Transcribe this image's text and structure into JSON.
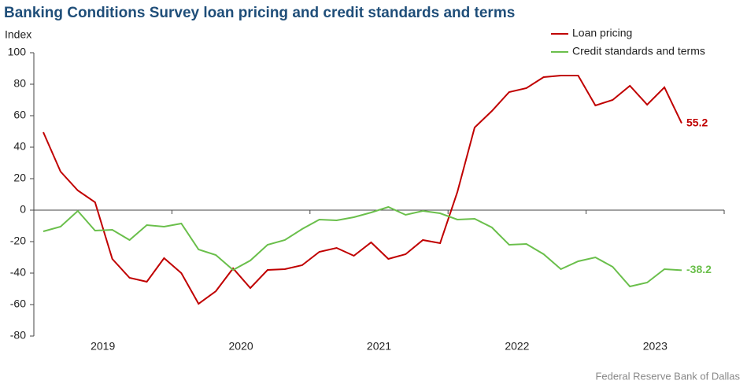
{
  "chart_data": {
    "type": "line",
    "title": "Banking Conditions Survey loan pricing and credit standards and terms",
    "y_label": "Index",
    "source": "Federal Reserve Bank of Dallas",
    "year_labels": [
      "2019",
      "2020",
      "2021",
      "2022",
      "2023"
    ],
    "ylim": [
      -80,
      100
    ],
    "yticks": [
      -80,
      -60,
      -40,
      -20,
      0,
      20,
      40,
      60,
      80,
      100
    ],
    "legend": "top-right",
    "series": [
      {
        "name": "Loan pricing",
        "color": "#c00000",
        "values": [
          49.5,
          24.5,
          12.5,
          5,
          -31,
          -43,
          -45.5,
          -30.5,
          -40,
          -59.5,
          -51.5,
          -37,
          -49.5,
          -38,
          -37.5,
          -35,
          -26.5,
          -24,
          -29,
          -20.5,
          -31,
          -28,
          -19,
          -21,
          11.5,
          52.5,
          63,
          75,
          77.5,
          84.5,
          85.5,
          85.5,
          66.5,
          70,
          79,
          67,
          78,
          55.2
        ]
      },
      {
        "name": "Credit standards and terms",
        "color": "#6abf4b",
        "values": [
          -13.5,
          -10.5,
          -0.5,
          -13,
          -12.5,
          -19,
          -9.5,
          -10.5,
          -8.5,
          -25,
          -28.5,
          -38,
          -32,
          -22,
          -19,
          -12,
          -6,
          -6.5,
          -4.5,
          -1.5,
          2,
          -3,
          -0.5,
          -2,
          -6,
          -5.5,
          -11,
          -22,
          -21.5,
          -28,
          -37.5,
          -32.5,
          -30,
          -36,
          -48.5,
          -46,
          -37.5,
          -38.2
        ]
      }
    ]
  }
}
